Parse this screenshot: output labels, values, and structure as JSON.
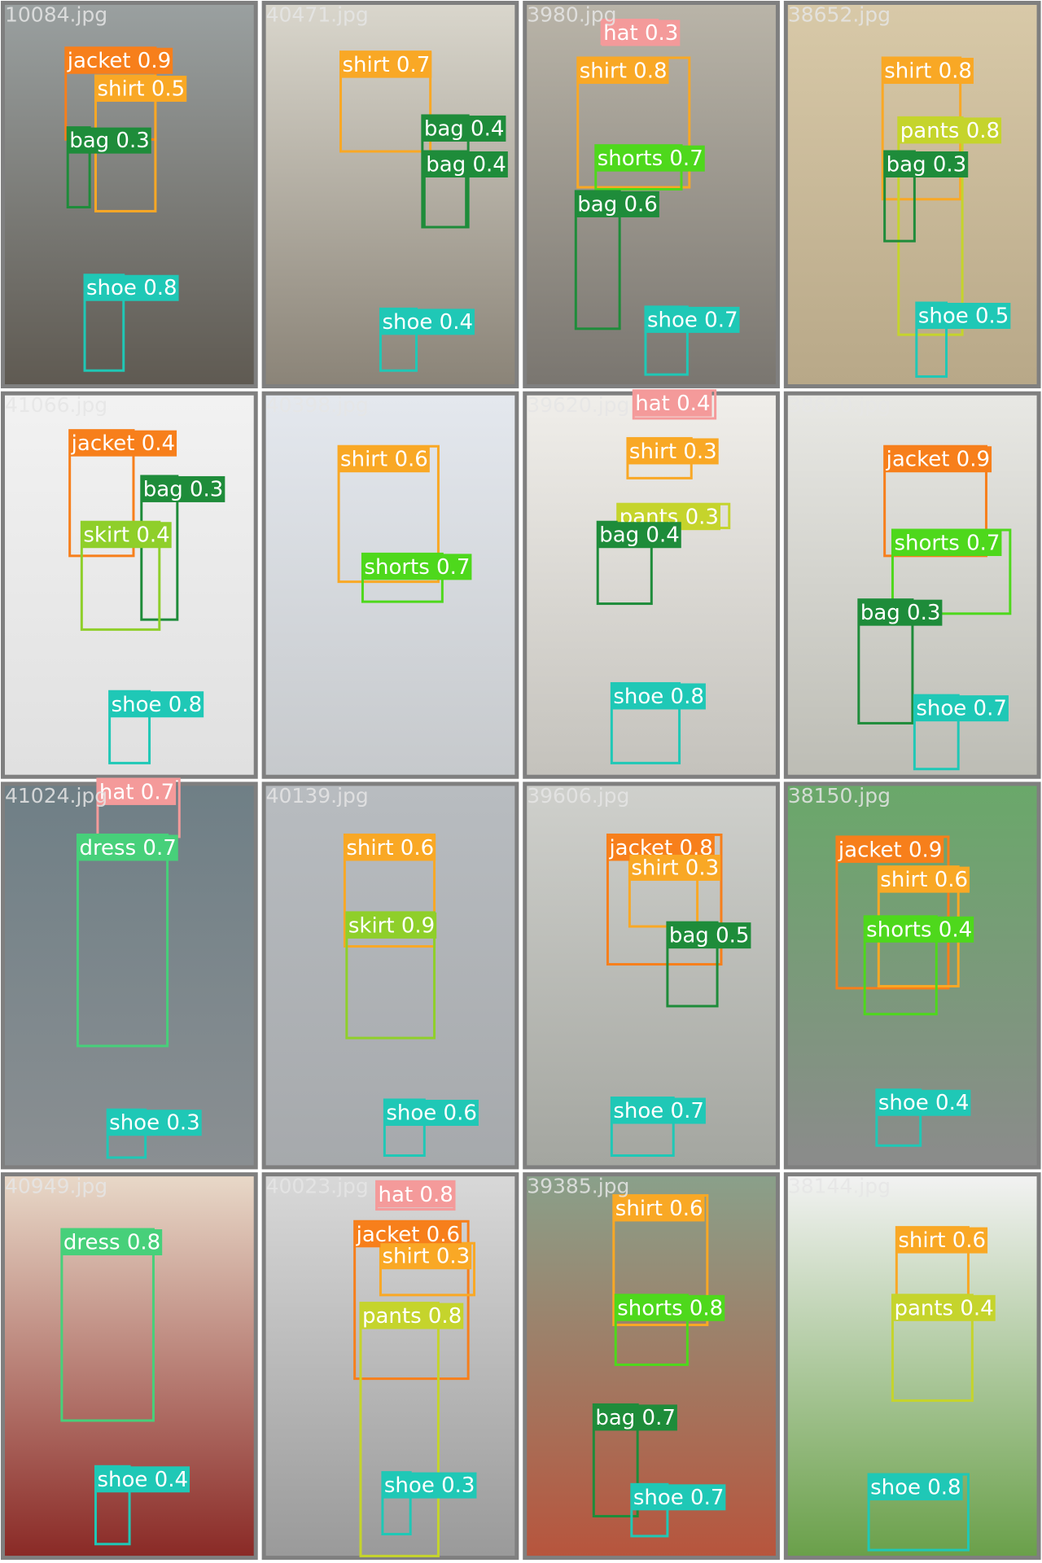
{
  "tiles": [
    {
      "file": "10084.jpg",
      "detections": [
        {
          "label": "jacket 0.9",
          "color": "#f77f1b"
        },
        {
          "label": "shirt 0.5",
          "color": "#f9a825"
        },
        {
          "label": "bag 0.3",
          "color": "#1e8c3a"
        },
        {
          "label": "shoe 0.8",
          "color": "#1fc8b6"
        }
      ]
    },
    {
      "file": "40471.jpg",
      "detections": [
        {
          "label": "shirt 0.7",
          "color": "#f9a825"
        },
        {
          "label": "bag 0.4",
          "color": "#1e8c3a"
        },
        {
          "label": "bag 0.4",
          "color": "#1e8c3a"
        },
        {
          "label": "shoe 0.4",
          "color": "#1fc8b6"
        }
      ]
    },
    {
      "file": "3980.jpg",
      "detections": [
        {
          "label": "hat 0.3",
          "color": "#f49a9a"
        },
        {
          "label": "shirt 0.8",
          "color": "#f9a825"
        },
        {
          "label": "shorts 0.7",
          "color": "#4ed81c"
        },
        {
          "label": "bag 0.6",
          "color": "#1e8c3a"
        },
        {
          "label": "shoe 0.7",
          "color": "#1fc8b6"
        }
      ]
    },
    {
      "file": "38652.jpg",
      "detections": [
        {
          "label": "shirt 0.8",
          "color": "#f9a825"
        },
        {
          "label": "pants 0.8",
          "color": "#c5d42c"
        },
        {
          "label": "bag 0.3",
          "color": "#1e8c3a"
        },
        {
          "label": "shoe 0.5",
          "color": "#1fc8b6"
        }
      ]
    },
    {
      "file": "41066.jpg",
      "detections": [
        {
          "label": "jacket 0.4",
          "color": "#f77f1b"
        },
        {
          "label": "bag 0.3",
          "color": "#1e8c3a"
        },
        {
          "label": "skirt 0.4",
          "color": "#8fcf2a"
        },
        {
          "label": "shoe 0.8",
          "color": "#1fc8b6"
        }
      ]
    },
    {
      "file": "40398.jpg",
      "detections": [
        {
          "label": "shirt 0.6",
          "color": "#f9a825"
        },
        {
          "label": "shorts 0.7",
          "color": "#4ed81c"
        }
      ]
    },
    {
      "file": "39620.jpg",
      "detections": [
        {
          "label": "hat 0.4",
          "color": "#f49a9a"
        },
        {
          "label": "shirt 0.3",
          "color": "#f9a825"
        },
        {
          "label": "pants 0.3",
          "color": "#c5d42c"
        },
        {
          "label": "bag 0.4",
          "color": "#1e8c3a"
        },
        {
          "label": "shoe 0.8",
          "color": "#1fc8b6"
        }
      ]
    },
    {
      "file": "38620.jpg",
      "detections": [
        {
          "label": "jacket 0.9",
          "color": "#f77f1b"
        },
        {
          "label": "shorts 0.7",
          "color": "#4ed81c"
        },
        {
          "label": "bag 0.3",
          "color": "#1e8c3a"
        },
        {
          "label": "shoe 0.7",
          "color": "#1fc8b6"
        }
      ]
    },
    {
      "file": "41024.jpg",
      "detections": [
        {
          "label": "hat 0.7",
          "color": "#f49a9a"
        },
        {
          "label": "dress 0.7",
          "color": "#47d07a"
        },
        {
          "label": "shoe 0.3",
          "color": "#1fc8b6"
        }
      ]
    },
    {
      "file": "40139.jpg",
      "detections": [
        {
          "label": "shirt 0.6",
          "color": "#f9a825"
        },
        {
          "label": "skirt 0.9",
          "color": "#8fcf2a"
        },
        {
          "label": "shoe 0.6",
          "color": "#1fc8b6"
        }
      ]
    },
    {
      "file": "39606.jpg",
      "detections": [
        {
          "label": "jacket 0.8",
          "color": "#f77f1b"
        },
        {
          "label": "shirt 0.3",
          "color": "#f9a825"
        },
        {
          "label": "bag 0.5",
          "color": "#1e8c3a"
        },
        {
          "label": "shoe 0.7",
          "color": "#1fc8b6"
        }
      ]
    },
    {
      "file": "38150.jpg",
      "detections": [
        {
          "label": "jacket 0.9",
          "color": "#f77f1b"
        },
        {
          "label": "shirt 0.6",
          "color": "#f9a825"
        },
        {
          "label": "shorts 0.4",
          "color": "#4ed81c"
        },
        {
          "label": "shoe 0.4",
          "color": "#1fc8b6"
        }
      ]
    },
    {
      "file": "40949.jpg",
      "detections": [
        {
          "label": "dress 0.8",
          "color": "#47d07a"
        },
        {
          "label": "shoe 0.4",
          "color": "#1fc8b6"
        }
      ]
    },
    {
      "file": "40023.jpg",
      "detections": [
        {
          "label": "hat 0.8",
          "color": "#f49a9a"
        },
        {
          "label": "jacket 0.6",
          "color": "#f77f1b"
        },
        {
          "label": "shirt 0.3",
          "color": "#f9a825"
        },
        {
          "label": "pants 0.8",
          "color": "#c5d42c"
        },
        {
          "label": "shoe 0.3",
          "color": "#1fc8b6"
        }
      ]
    },
    {
      "file": "39385.jpg",
      "detections": [
        {
          "label": "shirt 0.6",
          "color": "#f9a825"
        },
        {
          "label": "shorts 0.8",
          "color": "#4ed81c"
        },
        {
          "label": "bag 0.7",
          "color": "#1e8c3a"
        },
        {
          "label": "shoe 0.7",
          "color": "#1fc8b6"
        }
      ]
    },
    {
      "file": "38144.jpg",
      "detections": [
        {
          "label": "shirt 0.6",
          "color": "#f9a825"
        },
        {
          "label": "pants 0.4",
          "color": "#c5d42c"
        },
        {
          "label": "shoe 0.8",
          "color": "#1fc8b6"
        }
      ]
    }
  ]
}
